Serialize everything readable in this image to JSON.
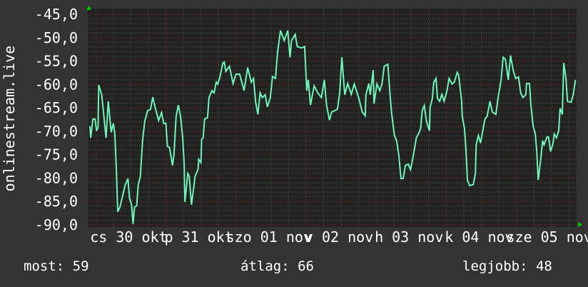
{
  "chart_data": {
    "type": "line",
    "title": "",
    "ylabel": "onlinestream.live",
    "xlabel": "",
    "ylim": [
      -90,
      -45
    ],
    "yticks": [
      "-45,0",
      "-50,0",
      "-55,0",
      "-60,0",
      "-65,0",
      "-70,0",
      "-75,0",
      "-80,0",
      "-85,0",
      "-90,0"
    ],
    "xlim": [
      "10-29 21:30",
      "11-05 20:30"
    ],
    "xticks": [
      "cs 30 okt",
      "p 31 okt",
      "szo 01 nov",
      "v 02 nov",
      "h 03 nov",
      "k 04 nov",
      "sze 05 nov"
    ],
    "grid": true,
    "colors": {
      "line": "#6ef5b8",
      "plot_bg": "#222222",
      "background": "#333333",
      "minor_grid": "#555555",
      "major_grid": "#8a2e2e",
      "arrow": "#00cc00"
    },
    "series": [
      {
        "points": [
          [
            "10-29 22:00",
            -68.9
          ],
          [
            "10-29 22:15",
            -71.4
          ],
          [
            "10-29 23:00",
            -67.4
          ],
          [
            "10-29 23:45",
            -67.4
          ],
          [
            "10-30 00:15",
            -69.9
          ],
          [
            "10-30 00:45",
            -69.1
          ],
          [
            "10-30 01:00",
            -60.1
          ],
          [
            "10-30 02:00",
            -62.2
          ],
          [
            "10-30 02:30",
            -65.1
          ],
          [
            "10-30 03:30",
            -71.4
          ],
          [
            "10-30 04:15",
            -63.6
          ],
          [
            "10-30 05:15",
            -70.2
          ],
          [
            "10-30 06:00",
            -68.3
          ],
          [
            "10-30 06:30",
            -70.5
          ],
          [
            "10-30 07:00",
            -77.5
          ],
          [
            "10-30 07:30",
            -87.2
          ],
          [
            "10-30 08:15",
            -86.2
          ],
          [
            "10-30 09:00",
            -84.3
          ],
          [
            "10-30 10:00",
            -81.6
          ],
          [
            "10-30 11:00",
            -80.1
          ],
          [
            "10-30 11:30",
            -84.2
          ],
          [
            "10-30 12:15",
            -85.7
          ],
          [
            "10-30 12:45",
            -89.8
          ],
          [
            "10-30 13:15",
            -86.2
          ],
          [
            "10-30 14:00",
            -85.9
          ],
          [
            "10-30 14:30",
            -81.6
          ],
          [
            "10-30 15:15",
            -79.6
          ],
          [
            "10-30 16:00",
            -72.0
          ],
          [
            "10-30 16:45",
            -67.9
          ],
          [
            "10-30 17:45",
            -65.6
          ],
          [
            "10-30 18:45",
            -65.3
          ],
          [
            "10-30 19:30",
            -62.7
          ],
          [
            "10-30 20:15",
            -64.8
          ],
          [
            "10-30 21:30",
            -67.7
          ],
          [
            "10-30 22:30",
            -66.0
          ],
          [
            "10-30 23:15",
            -68.3
          ],
          [
            "10-31 00:00",
            -68.3
          ],
          [
            "10-31 00:30",
            -73.2
          ],
          [
            "10-31 01:15",
            -73.5
          ],
          [
            "10-31 02:15",
            -77.3
          ],
          [
            "10-31 02:45",
            -75.0
          ],
          [
            "10-31 03:30",
            -66.8
          ],
          [
            "10-31 04:15",
            -64.4
          ],
          [
            "10-31 05:00",
            -66.8
          ],
          [
            "10-31 05:45",
            -71.4
          ],
          [
            "10-31 06:15",
            -77.0
          ],
          [
            "10-31 06:30",
            -85.1
          ],
          [
            "10-31 07:30",
            -79.0
          ],
          [
            "10-31 08:00",
            -79.6
          ],
          [
            "10-31 08:45",
            -85.7
          ],
          [
            "10-31 09:30",
            -82.1
          ],
          [
            "10-31 10:00",
            -79.6
          ],
          [
            "10-31 11:00",
            -78.2
          ],
          [
            "10-31 11:15",
            -76.0
          ],
          [
            "10-31 12:00",
            -76.7
          ],
          [
            "10-31 12:15",
            -71.7
          ],
          [
            "10-31 12:45",
            -71.4
          ],
          [
            "10-31 13:15",
            -67.4
          ],
          [
            "10-31 14:15",
            -67.1
          ],
          [
            "10-31 14:45",
            -62.8
          ],
          [
            "10-31 15:45",
            -61.3
          ],
          [
            "10-31 16:30",
            -61.8
          ],
          [
            "10-31 17:15",
            -59.5
          ],
          [
            "10-31 17:45",
            -59.9
          ],
          [
            "10-31 18:30",
            -58.4
          ],
          [
            "10-31 19:30",
            -55.4
          ],
          [
            "10-31 20:00",
            -55.2
          ],
          [
            "10-31 20:30",
            -57.2
          ],
          [
            "10-31 21:45",
            -56.1
          ],
          [
            "10-31 23:00",
            -59.8
          ],
          [
            "11-01 00:00",
            -57.8
          ],
          [
            "11-01 01:15",
            -57.8
          ],
          [
            "11-01 02:45",
            -61.3
          ],
          [
            "11-01 04:00",
            -56.4
          ],
          [
            "11-01 05:15",
            -59.5
          ],
          [
            "11-01 06:00",
            -58.7
          ],
          [
            "11-01 06:45",
            -63.8
          ],
          [
            "11-01 07:30",
            -66.4
          ],
          [
            "11-01 08:15",
            -61.8
          ],
          [
            "11-01 09:00",
            -62.8
          ],
          [
            "11-01 10:00",
            -62.2
          ],
          [
            "11-01 10:45",
            -64.8
          ],
          [
            "11-01 11:45",
            -62.8
          ],
          [
            "11-01 12:30",
            -58.3
          ],
          [
            "11-01 13:30",
            -58.7
          ],
          [
            "11-01 14:15",
            -53.1
          ],
          [
            "11-01 15:15",
            -48.5
          ],
          [
            "11-01 16:30",
            -50.6
          ],
          [
            "11-01 17:45",
            -48.5
          ],
          [
            "11-01 18:30",
            -54.2
          ],
          [
            "11-01 19:00",
            -50.6
          ],
          [
            "11-01 20:15",
            -49.3
          ],
          [
            "11-01 21:00",
            -51.9
          ],
          [
            "11-01 22:30",
            -52.2
          ],
          [
            "11-01 23:30",
            -51.9
          ],
          [
            "11-02 00:15",
            -61.3
          ],
          [
            "11-02 00:45",
            -59.0
          ],
          [
            "11-02 01:30",
            -64.4
          ],
          [
            "11-02 02:45",
            -60.3
          ],
          [
            "11-02 04:00",
            -61.8
          ],
          [
            "11-02 05:15",
            -62.8
          ],
          [
            "11-02 06:15",
            -59.0
          ],
          [
            "11-02 07:00",
            -64.4
          ],
          [
            "11-02 08:00",
            -67.6
          ],
          [
            "11-02 08:45",
            -65.9
          ],
          [
            "11-02 10:45",
            -65.3
          ],
          [
            "11-02 11:30",
            -61.8
          ],
          [
            "11-02 12:15",
            -54.2
          ],
          [
            "11-02 13:15",
            -62.2
          ],
          [
            "11-02 14:15",
            -59.8
          ],
          [
            "11-02 15:30",
            -62.1
          ],
          [
            "11-02 16:30",
            -59.9
          ],
          [
            "11-02 18:00",
            -62.8
          ],
          [
            "11-02 19:15",
            -65.9
          ],
          [
            "11-02 20:15",
            -66.7
          ],
          [
            "11-02 20:30",
            -62.2
          ],
          [
            "11-02 21:30",
            -59.8
          ],
          [
            "11-02 22:00",
            -62.2
          ],
          [
            "11-02 23:00",
            -56.9
          ],
          [
            "11-02 23:15",
            -64.1
          ],
          [
            "11-03 00:15",
            -59.9
          ],
          [
            "11-03 01:15",
            -61.3
          ],
          [
            "11-03 02:00",
            -59.9
          ],
          [
            "11-03 02:45",
            -56.1
          ],
          [
            "11-03 04:00",
            -55.7
          ],
          [
            "11-03 04:45",
            -62.2
          ],
          [
            "11-03 05:15",
            -65.9
          ],
          [
            "11-03 06:15",
            -70.9
          ],
          [
            "11-03 07:00",
            -72.0
          ],
          [
            "11-03 07:45",
            -75.0
          ],
          [
            "11-03 08:30",
            -80.1
          ],
          [
            "11-03 09:15",
            -80.1
          ],
          [
            "11-03 10:00",
            -77.3
          ],
          [
            "11-03 11:00",
            -77.0
          ],
          [
            "11-03 11:45",
            -78.2
          ],
          [
            "11-03 12:30",
            -76.0
          ],
          [
            "11-03 13:45",
            -71.4
          ],
          [
            "11-03 14:30",
            -70.5
          ],
          [
            "11-03 15:15",
            -69.4
          ],
          [
            "11-03 15:45",
            -65.6
          ],
          [
            "11-03 16:30",
            -64.5
          ],
          [
            "11-03 17:15",
            -67.9
          ],
          [
            "11-03 18:15",
            -69.9
          ],
          [
            "11-03 18:30",
            -64.8
          ],
          [
            "11-03 19:15",
            -63.0
          ],
          [
            "11-03 19:45",
            -59.5
          ],
          [
            "11-03 20:30",
            -58.7
          ],
          [
            "11-03 21:00",
            -63.0
          ],
          [
            "11-03 21:45",
            -63.6
          ],
          [
            "11-03 22:30",
            -62.1
          ],
          [
            "11-03 23:15",
            -63.6
          ],
          [
            "11-04 00:15",
            -61.3
          ],
          [
            "11-04 01:00",
            -58.7
          ],
          [
            "11-04 02:00",
            -59.9
          ],
          [
            "11-04 02:45",
            -59.5
          ],
          [
            "11-04 03:45",
            -57.4
          ],
          [
            "11-04 04:15",
            -58.0
          ],
          [
            "11-04 05:15",
            -63.3
          ],
          [
            "11-04 05:30",
            -66.8
          ],
          [
            "11-04 06:15",
            -69.4
          ],
          [
            "11-04 06:45",
            -74.0
          ],
          [
            "11-04 07:15",
            -80.5
          ],
          [
            "11-04 08:00",
            -81.6
          ],
          [
            "11-04 09:15",
            -81.4
          ],
          [
            "11-04 10:00",
            -79.0
          ],
          [
            "11-04 10:15",
            -72.9
          ],
          [
            "11-04 11:00",
            -70.9
          ],
          [
            "11-04 11:45",
            -72.5
          ],
          [
            "11-04 12:30",
            -69.9
          ],
          [
            "11-04 13:15",
            -67.4
          ],
          [
            "11-04 14:00",
            -66.8
          ],
          [
            "11-04 15:00",
            -63.6
          ],
          [
            "11-04 15:45",
            -65.9
          ],
          [
            "11-04 17:00",
            -66.4
          ],
          [
            "11-04 17:45",
            -62.8
          ],
          [
            "11-04 18:45",
            -59.2
          ],
          [
            "11-04 19:30",
            -54.2
          ],
          [
            "11-04 20:15",
            -54.6
          ],
          [
            "11-04 21:15",
            -59.0
          ],
          [
            "11-04 22:00",
            -53.8
          ],
          [
            "11-04 23:00",
            -57.2
          ],
          [
            "11-04 23:45",
            -58.7
          ],
          [
            "11-05 00:45",
            -58.4
          ],
          [
            "11-05 01:30",
            -61.8
          ],
          [
            "11-05 02:15",
            -62.8
          ],
          [
            "11-05 03:15",
            -62.2
          ],
          [
            "11-05 03:30",
            -59.8
          ],
          [
            "11-05 04:30",
            -59.8
          ],
          [
            "11-05 05:00",
            -64.4
          ],
          [
            "11-05 05:45",
            -68.9
          ],
          [
            "11-05 06:30",
            -70.5
          ],
          [
            "11-05 07:00",
            -74.3
          ],
          [
            "11-05 07:30",
            -80.4
          ],
          [
            "11-05 08:15",
            -76.6
          ],
          [
            "11-05 09:00",
            -72.0
          ],
          [
            "11-05 09:30",
            -72.9
          ],
          [
            "11-05 10:30",
            -71.2
          ],
          [
            "11-05 11:00",
            -71.2
          ],
          [
            "11-05 11:45",
            -74.3
          ],
          [
            "11-05 12:30",
            -72.8
          ],
          [
            "11-05 13:00",
            -70.6
          ],
          [
            "11-05 13:45",
            -71.4
          ],
          [
            "11-05 14:30",
            -69.9
          ],
          [
            "11-05 15:00",
            -65.1
          ],
          [
            "11-05 15:45",
            -66.4
          ],
          [
            "11-05 16:15",
            -55.4
          ],
          [
            "11-05 17:00",
            -58.7
          ],
          [
            "11-05 17:30",
            -63.6
          ],
          [
            "11-05 18:45",
            -63.8
          ],
          [
            "11-05 19:30",
            -62.2
          ],
          [
            "11-05 20:15",
            -59.0
          ]
        ]
      }
    ]
  },
  "footer": {
    "current": "most: 59",
    "average": "átlag: 66",
    "best": "legjobb: 48"
  }
}
